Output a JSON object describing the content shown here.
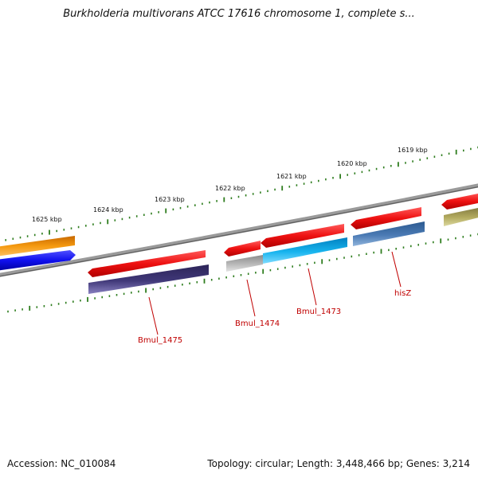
{
  "title": "Burkholderia multivorans ATCC 17616 chromosome 1, complete s...",
  "footer": {
    "accession": "Accession: NC_010084",
    "summary": "Topology: circular; Length: 3,448,466 bp; Genes: 3,214"
  },
  "scale_labels": [
    "1625 kbp",
    "1624 kbp",
    "1623 kbp",
    "1622 kbp",
    "1621 kbp",
    "1620 kbp",
    "1619 kbp"
  ],
  "gene_labels": [
    "Bmul_1475",
    "Bmul_1474",
    "Bmul_1473",
    "hisZ"
  ],
  "colors": {
    "backbone": "#7a7a7a",
    "tick": "#2e7d1e",
    "label": "#c00000",
    "cds": "#ee1111",
    "gene_orange": "#f59a10",
    "gene_blue": "#1010ee",
    "gene_navy": "#403878",
    "gene_gray": "#b8b8b8",
    "gene_cyan": "#18b4ee",
    "gene_steel": "#4a7ab4",
    "gene_olive": "#b4ac60"
  }
}
